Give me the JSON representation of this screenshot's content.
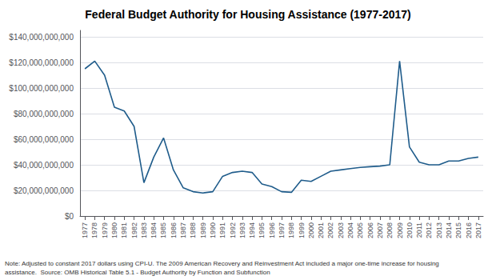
{
  "chart_data": {
    "type": "line",
    "title": "Federal Budget Authority for Housing Assistance (1977-2017)",
    "x": [
      1977,
      1978,
      1979,
      1980,
      1981,
      1982,
      1983,
      1984,
      1985,
      1986,
      1987,
      1988,
      1989,
      1990,
      1991,
      1992,
      1993,
      1994,
      1995,
      1996,
      1997,
      1998,
      1999,
      2000,
      2001,
      2002,
      2003,
      2004,
      2005,
      2006,
      2007,
      2008,
      2009,
      2010,
      2011,
      2012,
      2013,
      2014,
      2015,
      2016,
      2017
    ],
    "values": [
      115000000000,
      121000000000,
      110000000000,
      85000000000,
      82000000000,
      70000000000,
      26000000000,
      46000000000,
      61000000000,
      36000000000,
      22000000000,
      19000000000,
      18000000000,
      19000000000,
      31000000000,
      34000000000,
      35000000000,
      34000000000,
      25000000000,
      23000000000,
      19000000000,
      18500000000,
      28000000000,
      27000000000,
      31000000000,
      35000000000,
      36000000000,
      37000000000,
      38000000000,
      38500000000,
      39000000000,
      40000000000,
      121000000000,
      54000000000,
      42000000000,
      40000000000,
      40000000000,
      43000000000,
      43000000000,
      45000000000,
      46000000000
    ],
    "color": "#1f5c8b",
    "xlim": [
      1976.5,
      2017.5
    ],
    "xticks": [
      1977,
      1978,
      1979,
      1980,
      1981,
      1982,
      1983,
      1984,
      1985,
      1986,
      1987,
      1988,
      1989,
      1990,
      1991,
      1992,
      1993,
      1994,
      1995,
      1996,
      1997,
      1998,
      1999,
      2000,
      2001,
      2002,
      2003,
      2004,
      2005,
      2006,
      2007,
      2008,
      2009,
      2010,
      2011,
      2012,
      2013,
      2014,
      2015,
      2016,
      2017
    ],
    "ylim": [
      0,
      145000000000
    ],
    "yticks": [
      {
        "value": 0,
        "label": "$0"
      },
      {
        "value": 20000000000,
        "label": "$20,000,000,000"
      },
      {
        "value": 40000000000,
        "label": "$40,000,000,000"
      },
      {
        "value": 60000000000,
        "label": "$60,000,000,000"
      },
      {
        "value": 80000000000,
        "label": "$80,000,000,000"
      },
      {
        "value": 100000000000,
        "label": "$100,000,000,000"
      },
      {
        "value": 120000000000,
        "label": "$120,000,000,000"
      },
      {
        "value": 140000000000,
        "label": "$140,000,000,000"
      }
    ],
    "grid": true,
    "annotations": [
      "Note: Adjusted to constant 2017 dollars using CPI-U. The 2009 American Recovery and Reinvestment Act included a major one-time increase for housing",
      "assistance.  Source: OMB Historical Table 5.1 - Budget Authority by Function and Subfunction"
    ]
  }
}
